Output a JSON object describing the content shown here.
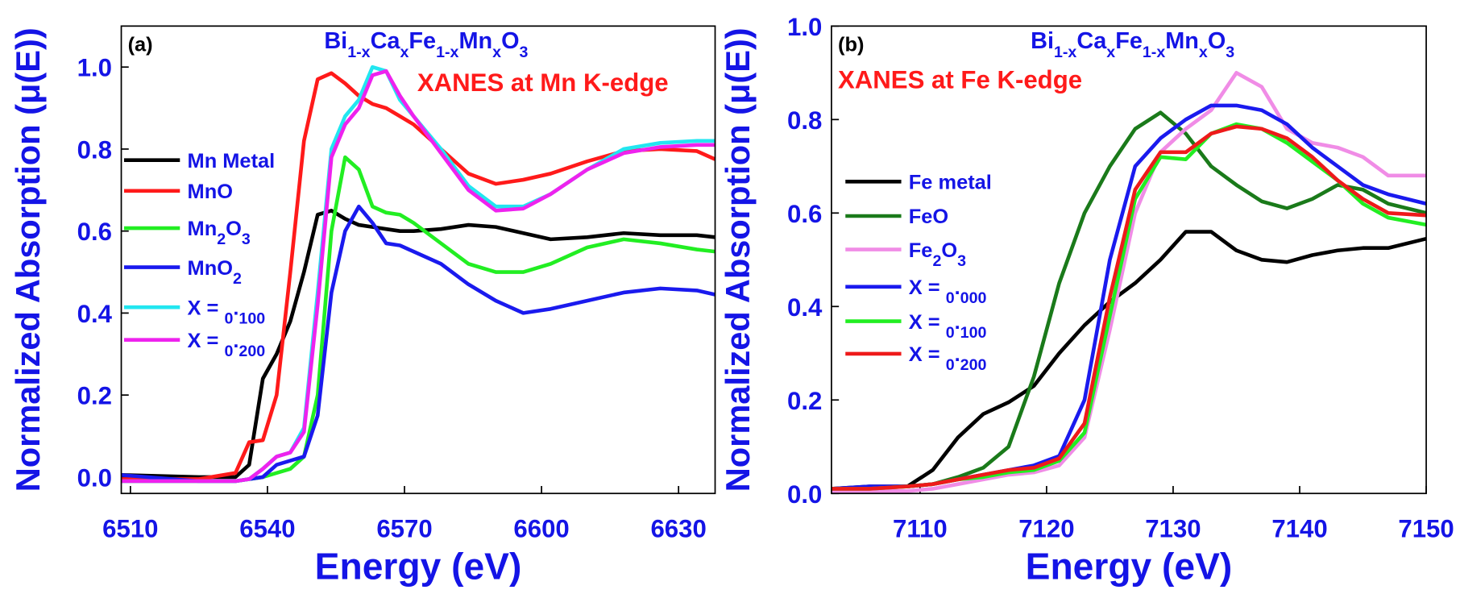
{
  "chart_data": [
    {
      "type": "line",
      "panel_label": "(a)",
      "title": [
        "Bi",
        "1-x",
        "Ca",
        "x",
        "Fe",
        "1-x",
        "Mn",
        "x",
        "O",
        "3"
      ],
      "annotation": "XANES at Mn K-edge",
      "xlabel": "Energy (eV)",
      "ylabel": "Normalized Absorption (μ(E))",
      "xlim": [
        6508,
        6638
      ],
      "ylim": [
        -0.04,
        1.1
      ],
      "xticks": [
        6510,
        6540,
        6570,
        6600,
        6630
      ],
      "yticks": [
        {
          "value": 0,
          "label": "0.0"
        },
        0.2,
        0.4,
        0.6,
        0.8,
        {
          "value": 1,
          "label": "1.0"
        }
      ],
      "x": [
        6508,
        6525,
        6533,
        6536,
        6539,
        6542,
        6545,
        6548,
        6551,
        6554,
        6557,
        6560,
        6563,
        6566,
        6569,
        6572,
        6578,
        6584,
        6590,
        6596,
        6602,
        6610,
        6618,
        6626,
        6634,
        6638
      ],
      "series": [
        {
          "name": "Mn Metal",
          "color": "#000000",
          "values": [
            0.005,
            0,
            0,
            0.03,
            0.24,
            0.3,
            0.38,
            0.5,
            0.64,
            0.65,
            0.63,
            0.615,
            0.61,
            0.605,
            0.6,
            0.6,
            0.605,
            0.615,
            0.61,
            0.595,
            0.58,
            0.585,
            0.595,
            0.59,
            0.59,
            0.585
          ]
        },
        {
          "name": "MnO",
          "color": "#ff1a1a",
          "values": [
            -0.005,
            -0.005,
            0.01,
            0.085,
            0.09,
            0.2,
            0.5,
            0.82,
            0.97,
            0.985,
            0.96,
            0.93,
            0.91,
            0.9,
            0.88,
            0.86,
            0.8,
            0.74,
            0.715,
            0.725,
            0.74,
            0.77,
            0.795,
            0.8,
            0.795,
            0.775
          ]
        },
        {
          "name": "Mn2O3",
          "color": "#22ee22",
          "values": [
            -0.01,
            -0.01,
            -0.01,
            -0.005,
            0,
            0.01,
            0.02,
            0.05,
            0.2,
            0.6,
            0.78,
            0.75,
            0.66,
            0.645,
            0.64,
            0.62,
            0.57,
            0.52,
            0.5,
            0.5,
            0.52,
            0.56,
            0.58,
            0.57,
            0.555,
            0.55
          ]
        },
        {
          "name": "MnO2",
          "color": "#1a1aee",
          "values": [
            0.005,
            -0.01,
            -0.01,
            -0.005,
            0,
            0.03,
            0.04,
            0.05,
            0.15,
            0.45,
            0.6,
            0.66,
            0.62,
            0.57,
            0.565,
            0.55,
            0.52,
            0.47,
            0.43,
            0.4,
            0.41,
            0.43,
            0.45,
            0.46,
            0.455,
            0.445
          ]
        },
        {
          "name": "X = 0.100",
          "color": "#22e6f0",
          "values": [
            -0.01,
            -0.01,
            -0.01,
            -0.005,
            0.02,
            0.05,
            0.06,
            0.12,
            0.45,
            0.8,
            0.88,
            0.92,
            1.0,
            0.99,
            0.92,
            0.88,
            0.8,
            0.71,
            0.66,
            0.66,
            0.69,
            0.75,
            0.8,
            0.815,
            0.82,
            0.82
          ]
        },
        {
          "name": "X = 0.200",
          "color": "#ee22ee",
          "values": [
            -0.01,
            -0.01,
            -0.01,
            -0.005,
            0.02,
            0.05,
            0.06,
            0.11,
            0.42,
            0.78,
            0.86,
            0.9,
            0.98,
            0.99,
            0.93,
            0.88,
            0.79,
            0.7,
            0.65,
            0.655,
            0.69,
            0.75,
            0.79,
            0.805,
            0.81,
            0.81
          ]
        }
      ]
    },
    {
      "type": "line",
      "panel_label": "(b)",
      "title": [
        "Bi",
        "1-x",
        "Ca",
        "x",
        "Fe",
        "1-x",
        "Mn",
        "x",
        "O",
        "3"
      ],
      "annotation": "XANES at Fe K-edge",
      "xlabel": "Energy (eV)",
      "ylabel": "Normalized Absorption (μ(E))",
      "xlim": [
        7103,
        7150
      ],
      "ylim": [
        0,
        1
      ],
      "xticks": [
        7110,
        7120,
        7130,
        7140,
        7150
      ],
      "yticks": [
        {
          "value": 0,
          "label": "0.0"
        },
        0.2,
        0.4,
        0.6,
        0.8,
        {
          "value": 1,
          "label": "1.0"
        }
      ],
      "x": [
        7103,
        7106,
        7109,
        7111,
        7113,
        7115,
        7117,
        7119,
        7121,
        7123,
        7125,
        7127,
        7129,
        7131,
        7133,
        7135,
        7137,
        7139,
        7141,
        7143,
        7145,
        7147,
        7150
      ],
      "series": [
        {
          "name": "Fe metal",
          "color": "#000000",
          "values": [
            0.01,
            0.015,
            0.015,
            0.05,
            0.12,
            0.17,
            0.195,
            0.23,
            0.3,
            0.36,
            0.41,
            0.45,
            0.5,
            0.56,
            0.56,
            0.52,
            0.5,
            0.495,
            0.51,
            0.52,
            0.525,
            0.525,
            0.545
          ]
        },
        {
          "name": "FeO",
          "color": "#1a7a1a",
          "values": [
            0.01,
            0.012,
            0.015,
            0.02,
            0.035,
            0.055,
            0.1,
            0.25,
            0.45,
            0.6,
            0.7,
            0.78,
            0.815,
            0.77,
            0.7,
            0.66,
            0.625,
            0.61,
            0.63,
            0.66,
            0.65,
            0.62,
            0.6
          ]
        },
        {
          "name": "Fe2O3",
          "color": "#f08ce6",
          "values": [
            0.005,
            0.005,
            0.005,
            0.01,
            0.02,
            0.03,
            0.04,
            0.045,
            0.06,
            0.12,
            0.35,
            0.6,
            0.73,
            0.78,
            0.82,
            0.9,
            0.87,
            0.78,
            0.75,
            0.74,
            0.72,
            0.68,
            0.68
          ]
        },
        {
          "name": "X = 0.000",
          "color": "#1a1aee",
          "values": [
            0.01,
            0.015,
            0.015,
            0.02,
            0.03,
            0.04,
            0.05,
            0.06,
            0.08,
            0.2,
            0.5,
            0.7,
            0.76,
            0.8,
            0.83,
            0.83,
            0.82,
            0.79,
            0.74,
            0.7,
            0.66,
            0.64,
            0.62
          ]
        },
        {
          "name": "X = 0.100",
          "color": "#22ee22",
          "values": [
            0.01,
            0.01,
            0.015,
            0.02,
            0.03,
            0.035,
            0.045,
            0.05,
            0.07,
            0.13,
            0.38,
            0.63,
            0.72,
            0.715,
            0.77,
            0.79,
            0.78,
            0.75,
            0.71,
            0.67,
            0.62,
            0.59,
            0.575
          ]
        },
        {
          "name": "X = 0.200",
          "color": "#ee1a1a",
          "values": [
            0.01,
            0.01,
            0.015,
            0.02,
            0.03,
            0.04,
            0.05,
            0.055,
            0.075,
            0.15,
            0.42,
            0.65,
            0.73,
            0.73,
            0.77,
            0.785,
            0.78,
            0.76,
            0.72,
            0.67,
            0.63,
            0.6,
            0.595
          ]
        }
      ]
    }
  ]
}
